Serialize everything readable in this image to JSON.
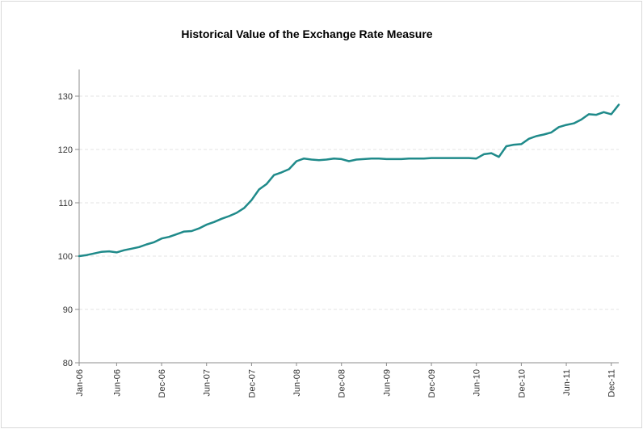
{
  "chart_data": {
    "type": "line",
    "title": "Historical Value of the Exchange Rate Measure",
    "xlabel": "",
    "ylabel": "",
    "ylim": [
      80,
      135
    ],
    "yticks": [
      80,
      90,
      100,
      110,
      120,
      130
    ],
    "xtick_labels": [
      "Jan-06",
      "Jun-06",
      "Dec-06",
      "Jun-07",
      "Dec-07",
      "Jun-08",
      "Dec-08",
      "Jun-09",
      "Dec-09",
      "Jun-10",
      "Dec-10",
      "Jun-11",
      "Dec-11"
    ],
    "xtick_months": [
      0,
      5,
      11,
      17,
      23,
      29,
      35,
      41,
      47,
      53,
      59,
      65,
      71
    ],
    "grid": true,
    "legend": "none",
    "color": "#1f8a8a",
    "series": [
      {
        "values": [
          100.0,
          100.2,
          100.5,
          100.8,
          100.9,
          100.7,
          101.1,
          101.4,
          101.7,
          102.2,
          102.6,
          103.3,
          103.6,
          104.1,
          104.6,
          104.7,
          105.2,
          105.9,
          106.4,
          107.0,
          107.5,
          108.1,
          109.0,
          110.5,
          112.5,
          113.5,
          115.2,
          115.7,
          116.3,
          117.8,
          118.3,
          118.1,
          118.0,
          118.1,
          118.3,
          118.2,
          117.8,
          118.1,
          118.2,
          118.3,
          118.3,
          118.2,
          118.2,
          118.2,
          118.3,
          118.3,
          118.3,
          118.4,
          118.4,
          118.4,
          118.4,
          118.4,
          118.4,
          118.3,
          119.1,
          119.3,
          118.6,
          120.6,
          120.9,
          121.0,
          122.0,
          122.5,
          122.8,
          123.2,
          124.2,
          124.6,
          124.9,
          125.6,
          126.6,
          126.5,
          127.0,
          126.6,
          128.4
        ]
      }
    ]
  }
}
